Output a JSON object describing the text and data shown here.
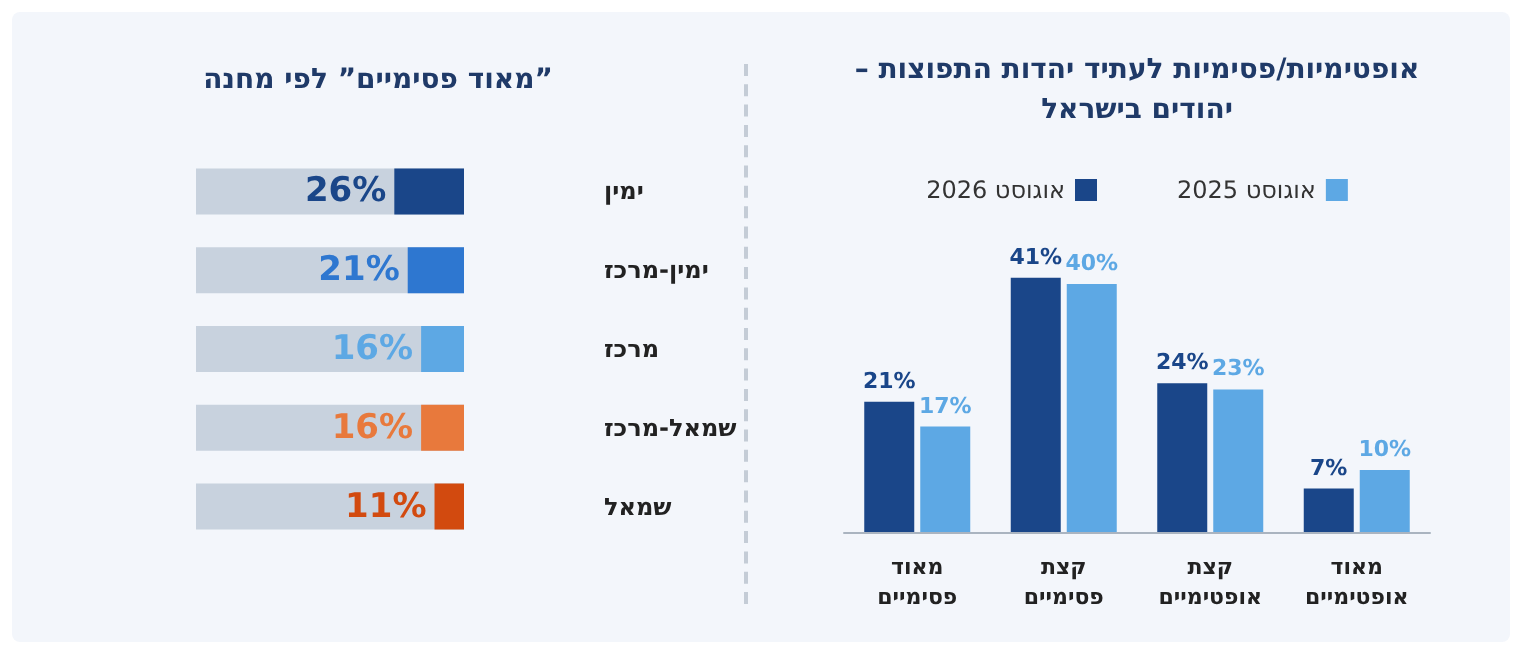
{
  "chart_data": [
    {
      "type": "bar",
      "title": "אופטימיות/פסימיות לעתיד יהדות התפוצות –\nיהודים בישראל",
      "categories": [
        "מאוד\nפסימיים",
        "קצת\nפסימיים",
        "קצת\nאופטימיים",
        "מאוד\nאופטימיים"
      ],
      "legend": "top",
      "tick_labels": "x",
      "series": [
        {
          "name": "אוגוסט 2026",
          "color": "#1a4689",
          "values": [
            21,
            41,
            24,
            7
          ],
          "value_labels": [
            "21%",
            "41%",
            "24%",
            "7%"
          ]
        },
        {
          "name": "אוגוסט 2025",
          "color": "#5da8e4",
          "values": [
            17,
            40,
            23,
            10
          ],
          "value_labels": [
            "17%",
            "40%",
            "23%",
            "10%"
          ]
        }
      ]
    },
    {
      "type": "bar",
      "orientation": "horizontal",
      "title": "”מאוד פסימיים” לפי מחנה",
      "categories": [
        "ימין",
        "ימין-מרכז",
        "מרכז",
        "שמאל-מרכז",
        "שמאל"
      ],
      "xlim": [
        100,
        0
      ],
      "tick_labels": "y",
      "series": [
        {
          "colors": [
            "#1a4689",
            "#2e77d0",
            "#5da8e4",
            "#e8793c",
            "#d24a0f"
          ],
          "values": [
            26,
            21,
            16,
            16,
            11
          ],
          "value_labels": [
            "26%",
            "21%",
            "16%",
            "16%",
            "11%"
          ]
        }
      ]
    }
  ]
}
